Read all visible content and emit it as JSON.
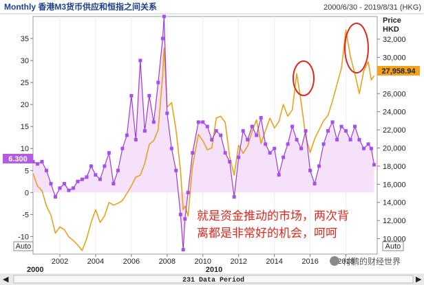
{
  "header": {
    "title": "Monthly 香港M3货币供应和恒指之间关系",
    "date_range": "2000/6/30 - 2019/8/31 (HKG)"
  },
  "colors": {
    "background": "#ffffff",
    "price_line": "#e8a21a",
    "m3_line": "#9a3ccf",
    "m3_marker": "#a64ff0",
    "m3_fill": "#f3dcf8",
    "annotation": "#e0261d",
    "last_price_bg": "#f2a51c",
    "m3_label_bg": "#b55be0"
  },
  "chart_data": {
    "type": "line",
    "x_tick_labels": [
      "2002",
      "2004",
      "2006",
      "2008",
      "2010",
      "2012",
      "2014",
      "2016",
      "2018"
    ],
    "x_major_labels": [
      "2000",
      "2010"
    ],
    "left_axis": {
      "ticks": [
        "35",
        "30",
        "25",
        "20",
        "15",
        "10",
        "5",
        "0",
        "-5",
        "-10"
      ],
      "range": [
        -14,
        40
      ]
    },
    "right_axis": {
      "label_line1": "Price",
      "label_line2": "HKD",
      "ticks": [
        "32,000",
        "30,000",
        "26,000",
        "24,000",
        "22,000",
        "20,000",
        "18,000",
        "16,000",
        "14,000",
        "12,000",
        "10,000"
      ],
      "range": [
        8300,
        34500
      ]
    },
    "last_price_label": "27,958.94",
    "m3_current_label": "6.300",
    "auto_left": "Auto",
    "auto_right": "Auto",
    "period_label": "231 Data Period",
    "annotation": {
      "line1": "就是资金推动的市场，两次背",
      "line2": "离都是非常好的机会，呵呵"
    },
    "watermark": "付鹏的财经世界",
    "series": [
      {
        "axis": "right",
        "points": [
          [
            2000.5,
            17200
          ],
          [
            2000.75,
            15800
          ],
          [
            2001.0,
            15300
          ],
          [
            2001.25,
            13600
          ],
          [
            2001.5,
            12600
          ],
          [
            2001.75,
            10600
          ],
          [
            2002.0,
            11300
          ],
          [
            2002.25,
            11000
          ],
          [
            2002.5,
            10200
          ],
          [
            2002.75,
            9800
          ],
          [
            2003.0,
            9300
          ],
          [
            2003.25,
            8700
          ],
          [
            2003.5,
            10000
          ],
          [
            2003.75,
            11800
          ],
          [
            2004.0,
            13200
          ],
          [
            2004.25,
            11800
          ],
          [
            2004.5,
            12500
          ],
          [
            2004.75,
            14000
          ],
          [
            2005.0,
            13700
          ],
          [
            2005.25,
            13900
          ],
          [
            2005.5,
            14200
          ],
          [
            2005.75,
            15000
          ],
          [
            2006.0,
            15800
          ],
          [
            2006.25,
            16800
          ],
          [
            2006.5,
            17000
          ],
          [
            2006.75,
            18300
          ],
          [
            2007.0,
            20400
          ],
          [
            2007.25,
            20800
          ],
          [
            2007.5,
            22000
          ],
          [
            2007.75,
            28000
          ],
          [
            2007.83,
            31000
          ],
          [
            2008.0,
            24500
          ],
          [
            2008.25,
            25000
          ],
          [
            2008.5,
            22000
          ],
          [
            2008.75,
            17500
          ],
          [
            2008.9,
            13200
          ],
          [
            2009.0,
            13600
          ],
          [
            2009.17,
            12500
          ],
          [
            2009.42,
            18000
          ],
          [
            2009.75,
            21500
          ],
          [
            2010.0,
            20800
          ],
          [
            2010.25,
            19800
          ],
          [
            2010.5,
            20000
          ],
          [
            2010.75,
            23300
          ],
          [
            2011.0,
            23500
          ],
          [
            2011.25,
            22800
          ],
          [
            2011.5,
            19000
          ],
          [
            2011.75,
            17000
          ],
          [
            2012.0,
            20300
          ],
          [
            2012.25,
            19400
          ],
          [
            2012.5,
            20200
          ],
          [
            2012.75,
            21800
          ],
          [
            2013.0,
            23100
          ],
          [
            2013.25,
            20500
          ],
          [
            2013.5,
            21900
          ],
          [
            2013.75,
            23300
          ],
          [
            2014.0,
            22200
          ],
          [
            2014.25,
            22900
          ],
          [
            2014.5,
            24800
          ],
          [
            2014.75,
            23500
          ],
          [
            2015.0,
            24200
          ],
          [
            2015.25,
            28200
          ],
          [
            2015.5,
            25000
          ],
          [
            2015.75,
            21300
          ],
          [
            2016.0,
            19500
          ],
          [
            2016.25,
            21000
          ],
          [
            2016.5,
            22000
          ],
          [
            2016.75,
            23000
          ],
          [
            2017.0,
            23600
          ],
          [
            2017.25,
            25200
          ],
          [
            2017.5,
            27000
          ],
          [
            2017.75,
            28800
          ],
          [
            2018.0,
            33000
          ],
          [
            2018.25,
            30100
          ],
          [
            2018.5,
            28200
          ],
          [
            2018.75,
            26000
          ],
          [
            2019.0,
            28500
          ],
          [
            2019.25,
            29500
          ],
          [
            2019.42,
            27500
          ],
          [
            2019.58,
            27959
          ]
        ]
      },
      {
        "axis": "left",
        "points": [
          [
            2000.5,
            7
          ],
          [
            2000.75,
            6.5
          ],
          [
            2001.0,
            7
          ],
          [
            2001.25,
            5
          ],
          [
            2001.5,
            2
          ],
          [
            2001.75,
            -1
          ],
          [
            2002.0,
            1
          ],
          [
            2002.25,
            2
          ],
          [
            2002.5,
            0.5
          ],
          [
            2002.75,
            1
          ],
          [
            2003.0,
            2.5
          ],
          [
            2003.25,
            3
          ],
          [
            2003.5,
            3.5
          ],
          [
            2003.75,
            6
          ],
          [
            2004.0,
            4
          ],
          [
            2004.25,
            3
          ],
          [
            2004.5,
            6
          ],
          [
            2004.75,
            9
          ],
          [
            2005.0,
            2
          ],
          [
            2005.25,
            5
          ],
          [
            2005.5,
            10
          ],
          [
            2005.75,
            13
          ],
          [
            2006.0,
            22
          ],
          [
            2006.25,
            12
          ],
          [
            2006.5,
            30
          ],
          [
            2006.75,
            14
          ],
          [
            2007.0,
            22
          ],
          [
            2007.25,
            16
          ],
          [
            2007.5,
            25
          ],
          [
            2007.75,
            35
          ],
          [
            2007.83,
            40
          ],
          [
            2008.0,
            18
          ],
          [
            2008.25,
            10
          ],
          [
            2008.5,
            5
          ],
          [
            2008.75,
            -5
          ],
          [
            2008.9,
            -13
          ],
          [
            2009.0,
            -6
          ],
          [
            2009.17,
            0
          ],
          [
            2009.42,
            9
          ],
          [
            2009.75,
            16
          ],
          [
            2010.0,
            16
          ],
          [
            2010.25,
            15
          ],
          [
            2010.5,
            12
          ],
          [
            2010.75,
            14
          ],
          [
            2011.0,
            13
          ],
          [
            2011.25,
            9
          ],
          [
            2011.5,
            7
          ],
          [
            2011.75,
            -1
          ],
          [
            2012.0,
            8
          ],
          [
            2012.25,
            14
          ],
          [
            2012.5,
            12
          ],
          [
            2012.75,
            15
          ],
          [
            2013.0,
            13
          ],
          [
            2013.25,
            17
          ],
          [
            2013.5,
            11
          ],
          [
            2013.75,
            9
          ],
          [
            2014.0,
            10
          ],
          [
            2014.25,
            4
          ],
          [
            2014.5,
            8
          ],
          [
            2014.75,
            11
          ],
          [
            2015.0,
            15
          ],
          [
            2015.25,
            12
          ],
          [
            2015.5,
            10
          ],
          [
            2015.75,
            14
          ],
          [
            2016.0,
            5
          ],
          [
            2016.25,
            2
          ],
          [
            2016.5,
            6
          ],
          [
            2016.75,
            11
          ],
          [
            2017.0,
            14
          ],
          [
            2017.25,
            16
          ],
          [
            2017.5,
            12
          ],
          [
            2017.75,
            15
          ],
          [
            2018.0,
            14
          ],
          [
            2018.25,
            12
          ],
          [
            2018.5,
            15
          ],
          [
            2018.75,
            12
          ],
          [
            2019.0,
            10
          ],
          [
            2019.25,
            11
          ],
          [
            2019.42,
            10
          ],
          [
            2019.58,
            6.3
          ]
        ]
      }
    ]
  }
}
